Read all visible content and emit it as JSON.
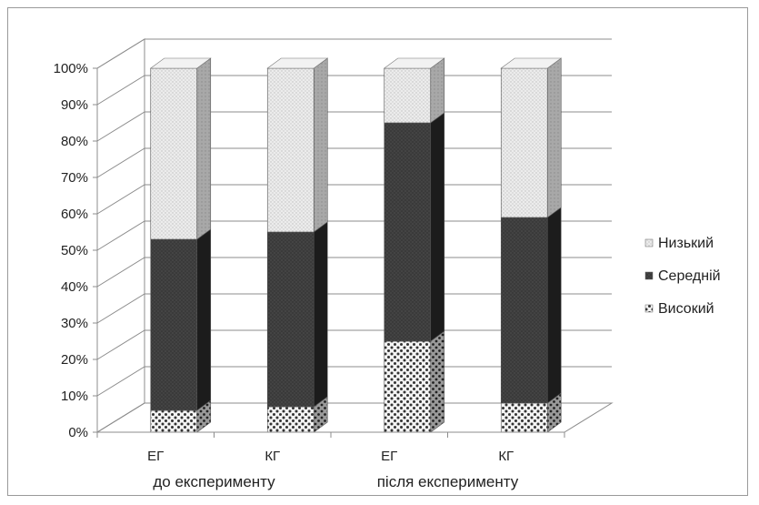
{
  "chart_data": {
    "type": "bar",
    "stacked": true,
    "three_d": true,
    "categories": [
      "ЕГ",
      "КГ",
      "ЕГ",
      "КГ"
    ],
    "groups": [
      {
        "label": "до експерименту",
        "categories": [
          0,
          1
        ]
      },
      {
        "label": "після експерименту",
        "categories": [
          2,
          3
        ]
      }
    ],
    "series": [
      {
        "name": "Високий",
        "values": [
          6,
          7,
          25,
          8
        ],
        "pattern": "dots"
      },
      {
        "name": "Середній",
        "values": [
          47,
          48,
          60,
          51
        ],
        "pattern": "dark"
      },
      {
        "name": "Низький",
        "values": [
          47,
          45,
          15,
          41
        ],
        "pattern": "light"
      }
    ],
    "legend_order": [
      2,
      1,
      0
    ],
    "legend_position": "right",
    "yticks": [
      "0%",
      "10%",
      "20%",
      "30%",
      "40%",
      "50%",
      "60%",
      "70%",
      "80%",
      "90%",
      "100%"
    ],
    "ylim": [
      0,
      100
    ],
    "grid": true,
    "colors": {
      "dark": "#3c3c3c",
      "light": "#e6e6e6",
      "dots": "#ffffff",
      "grid": "#8c8c8c"
    }
  }
}
